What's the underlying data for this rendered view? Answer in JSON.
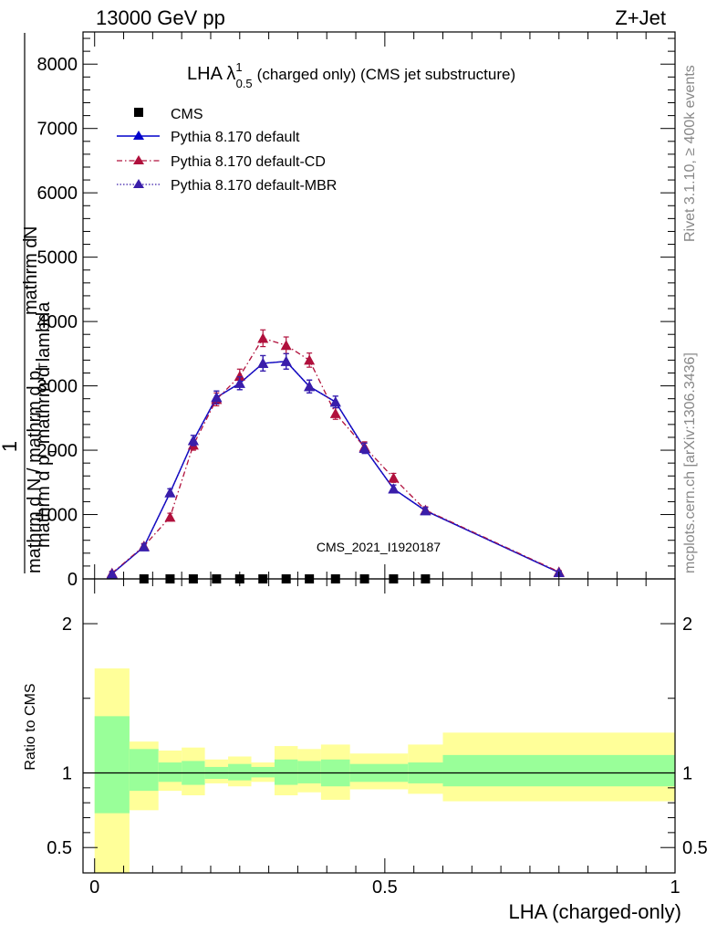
{
  "header": {
    "energy_label": "13000 GeV pp",
    "process_label": "Z+Jet"
  },
  "side_notes": {
    "rivet": "Rivet 3.1.10, ≥ 400k events",
    "mcplots": "mcplots.cern.ch [arXiv:1306.3436]"
  },
  "watermark": "CMS_2021_I1920187",
  "chart_data": [
    {
      "type": "line",
      "panel": "main",
      "title_main": "LHA λ",
      "title_sup": "1",
      "title_sub": "0.5",
      "title_rest": "(charged only) (CMS jet substructure)",
      "xlim": [
        -0.02,
        1.0
      ],
      "ylim": [
        0,
        8500
      ],
      "yticks": [
        0,
        1000,
        2000,
        3000,
        4000,
        5000,
        6000,
        7000,
        8000
      ],
      "xticks": [
        0,
        0.5,
        1
      ],
      "xtick_labels": [
        "0",
        "0.5",
        "1"
      ],
      "ylabel_parts": {
        "prefix": "1",
        "denominator": "mathrm d N / mathrm d p",
        "denominator_sub": "T",
        "numerator_top": "mathrm d",
        "numerator_sup": "2",
        "numerator_bottom": "N",
        "second_denominator": "mathrm d p",
        "second_denominator_sub": "T",
        "second_denominator_rest": "mathrm d lambda"
      },
      "legend": [
        {
          "name": "CMS",
          "style": "data"
        },
        {
          "name": "Pythia 8.170 default",
          "style": "solid"
        },
        {
          "name": "Pythia 8.170 default-CD",
          "style": "dashdot"
        },
        {
          "name": "Pythia 8.170 default-MBR",
          "style": "dotted"
        }
      ],
      "cms_points": {
        "x": [
          0.085,
          0.13,
          0.17,
          0.21,
          0.25,
          0.29,
          0.33,
          0.37,
          0.415,
          0.465,
          0.515,
          0.57
        ],
        "y": [
          0,
          0,
          0,
          0,
          0,
          0,
          0,
          0,
          0,
          0,
          0,
          0
        ]
      },
      "series": [
        {
          "name": "Pythia 8.170 default",
          "color": "#0000cc",
          "x": [
            0.03,
            0.085,
            0.13,
            0.17,
            0.21,
            0.25,
            0.29,
            0.33,
            0.37,
            0.415,
            0.465,
            0.515,
            0.57,
            0.8
          ],
          "y": [
            80,
            500,
            1340,
            2150,
            2820,
            3040,
            3350,
            3380,
            2990,
            2750,
            2030,
            1400,
            1060,
            100
          ],
          "err": [
            30,
            40,
            60,
            80,
            100,
            100,
            120,
            120,
            100,
            90,
            80,
            60,
            50,
            20
          ]
        },
        {
          "name": "Pythia 8.170 default-CD",
          "color": "#b0103c",
          "x": [
            0.03,
            0.085,
            0.13,
            0.17,
            0.21,
            0.25,
            0.29,
            0.33,
            0.37,
            0.415,
            0.465,
            0.515,
            0.57,
            0.8
          ],
          "y": [
            90,
            510,
            960,
            2080,
            2790,
            3150,
            3740,
            3630,
            3400,
            2570,
            2050,
            1570,
            1070,
            110
          ],
          "err": [
            30,
            40,
            60,
            80,
            100,
            110,
            130,
            130,
            110,
            90,
            80,
            70,
            50,
            20
          ]
        },
        {
          "name": "Pythia 8.170 default-MBR",
          "color": "#3a1eaa",
          "x": [
            0.03,
            0.085,
            0.13,
            0.17,
            0.21,
            0.25,
            0.29,
            0.33,
            0.37,
            0.415,
            0.465,
            0.515,
            0.57,
            0.8
          ],
          "y": [
            80,
            500,
            1340,
            2150,
            2820,
            3040,
            3350,
            3380,
            2990,
            2750,
            2030,
            1400,
            1060,
            100
          ],
          "err": [
            30,
            40,
            60,
            80,
            100,
            100,
            120,
            120,
            100,
            90,
            80,
            60,
            50,
            20
          ]
        }
      ]
    },
    {
      "type": "area",
      "panel": "ratio",
      "ylabel": "Ratio to CMS",
      "xlabel": "LHA (charged-only)",
      "xlim": [
        -0.02,
        1.0
      ],
      "ylim": [
        0.33,
        2.3
      ],
      "yticks": [
        0.5,
        1,
        2
      ],
      "ytick_labels": [
        "0.5",
        "1",
        "2"
      ],
      "xticks": [
        0,
        0.5,
        1
      ],
      "xtick_labels": [
        "0",
        "0.5",
        "1"
      ],
      "band_colors": {
        "inner": "#99ff99",
        "outer": "#ffff99"
      },
      "bins": [
        {
          "x0": 0.0,
          "x1": 0.06,
          "inner": [
            0.73,
            1.38
          ],
          "outer": [
            0.33,
            1.7
          ]
        },
        {
          "x0": 0.06,
          "x1": 0.11,
          "inner": [
            0.88,
            1.16
          ],
          "outer": [
            0.75,
            1.21
          ]
        },
        {
          "x0": 0.11,
          "x1": 0.15,
          "inner": [
            0.94,
            1.07
          ],
          "outer": [
            0.88,
            1.15
          ]
        },
        {
          "x0": 0.15,
          "x1": 0.19,
          "inner": [
            0.92,
            1.08
          ],
          "outer": [
            0.85,
            1.17
          ]
        },
        {
          "x0": 0.19,
          "x1": 0.23,
          "inner": [
            0.96,
            1.04
          ],
          "outer": [
            0.93,
            1.09
          ]
        },
        {
          "x0": 0.23,
          "x1": 0.27,
          "inner": [
            0.95,
            1.06
          ],
          "outer": [
            0.91,
            1.11
          ]
        },
        {
          "x0": 0.27,
          "x1": 0.31,
          "inner": [
            0.97,
            1.04
          ],
          "outer": [
            0.94,
            1.07
          ]
        },
        {
          "x0": 0.31,
          "x1": 0.35,
          "inner": [
            0.92,
            1.09
          ],
          "outer": [
            0.85,
            1.18
          ]
        },
        {
          "x0": 0.35,
          "x1": 0.39,
          "inner": [
            0.93,
            1.08
          ],
          "outer": [
            0.87,
            1.16
          ]
        },
        {
          "x0": 0.39,
          "x1": 0.44,
          "inner": [
            0.91,
            1.09
          ],
          "outer": [
            0.82,
            1.19
          ]
        },
        {
          "x0": 0.44,
          "x1": 0.49,
          "inner": [
            0.94,
            1.06
          ],
          "outer": [
            0.89,
            1.13
          ]
        },
        {
          "x0": 0.49,
          "x1": 0.54,
          "inner": [
            0.94,
            1.06
          ],
          "outer": [
            0.89,
            1.13
          ]
        },
        {
          "x0": 0.54,
          "x1": 0.6,
          "inner": [
            0.93,
            1.07
          ],
          "outer": [
            0.86,
            1.19
          ]
        },
        {
          "x0": 0.6,
          "x1": 1.0,
          "inner": [
            0.91,
            1.12
          ],
          "outer": [
            0.81,
            1.27
          ]
        }
      ]
    }
  ]
}
